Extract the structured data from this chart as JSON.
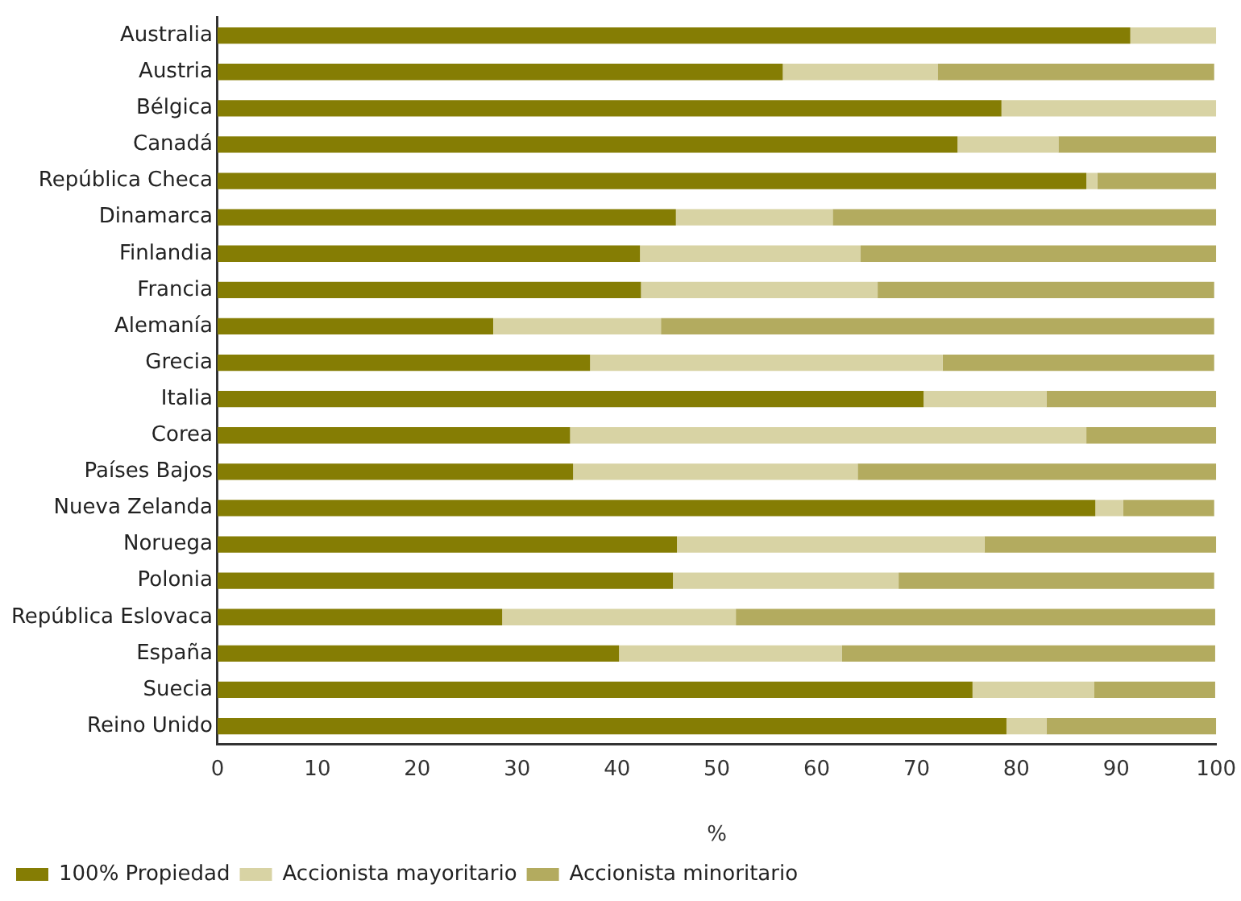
{
  "chart_data": {
    "type": "bar",
    "orientation": "horizontal",
    "stacked": true,
    "categories": [
      "Australia",
      "Austria",
      "Bélgica",
      "Canadá",
      "República Checa",
      "Dinamarca",
      "Finlandia",
      "Francia",
      "Alemanía",
      "Grecia",
      "Italia",
      "Corea",
      "Países Bajos",
      "Nueva Zelanda",
      "Noruega",
      "Polonia",
      "República Eslovaca",
      "España",
      "Suecia",
      "Reino Unido"
    ],
    "series": [
      {
        "name": "100% Propiedad",
        "color": "#857d04",
        "values": [
          91.4,
          56.6,
          78.5,
          74.1,
          87.0,
          45.9,
          42.3,
          42.4,
          27.6,
          37.3,
          70.7,
          35.3,
          35.6,
          87.9,
          46.0,
          45.6,
          28.5,
          40.2,
          75.6,
          79.0
        ]
      },
      {
        "name": "Accionista mayoritario",
        "color": "#d8d3a4",
        "values": [
          8.6,
          15.5,
          21.5,
          10.1,
          1.1,
          15.7,
          22.1,
          23.7,
          16.8,
          35.3,
          12.3,
          51.7,
          28.5,
          2.8,
          30.8,
          22.6,
          23.4,
          22.3,
          12.2,
          4.0
        ]
      },
      {
        "name": "Accionista minoritario",
        "color": "#b3ab5f",
        "values": [
          0,
          27.7,
          0,
          15.8,
          11.9,
          38.4,
          35.6,
          33.7,
          55.4,
          27.2,
          17.0,
          13.0,
          35.9,
          9.1,
          23.2,
          31.6,
          48.0,
          37.4,
          12.1,
          17.0
        ]
      }
    ],
    "xlim": [
      0,
      100
    ],
    "xticks": [
      0,
      10,
      20,
      30,
      40,
      50,
      60,
      70,
      80,
      90,
      100
    ],
    "xlabel": "%",
    "grid": false,
    "legend": "bottom left"
  }
}
